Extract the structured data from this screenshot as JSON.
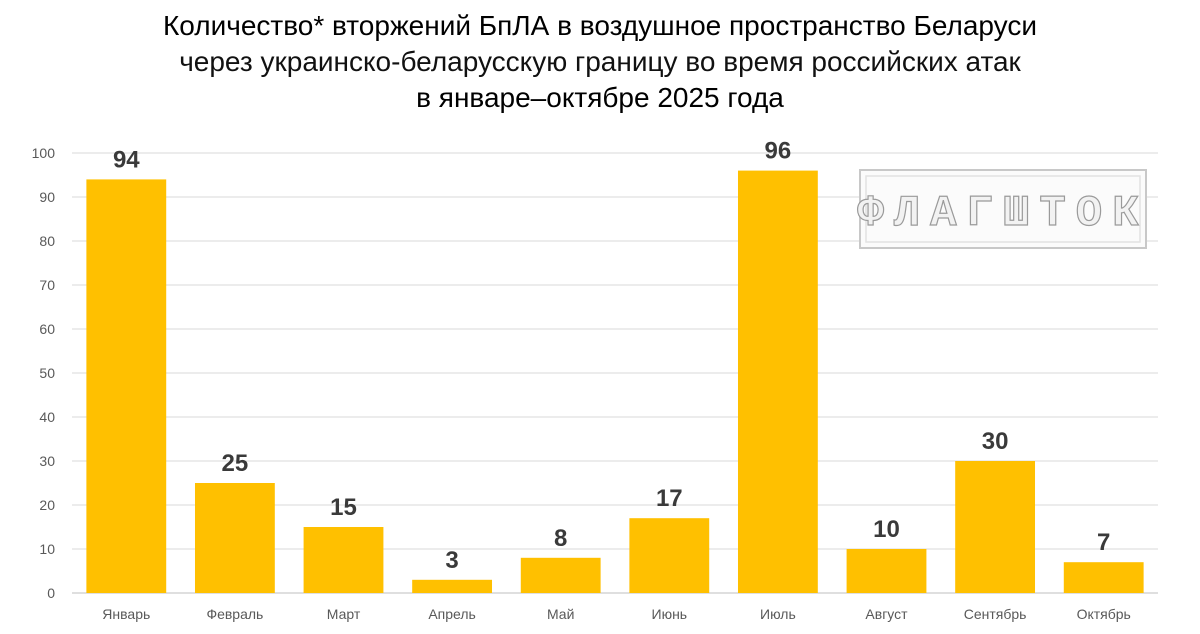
{
  "chart_data": {
    "type": "bar",
    "title": "Количество* вторжений БпЛА в воздушное пространство Беларуси",
    "subtitle": "через украинско-беларусскую границу во время российских атак",
    "period": "в январе–октябре 2025 года",
    "xlabel": "",
    "ylabel": "",
    "categories": [
      "Январь",
      "Февраль",
      "Март",
      "Апрель",
      "Май",
      "Июнь",
      "Июль",
      "Август",
      "Сентябрь",
      "Октябрь"
    ],
    "values": [
      94,
      25,
      15,
      3,
      8,
      17,
      96,
      10,
      30,
      7
    ],
    "ylim": [
      0,
      100
    ],
    "yticks": [
      0,
      10,
      20,
      30,
      40,
      50,
      60,
      70,
      80,
      90,
      100
    ],
    "grid": true,
    "data_labels": true,
    "legend": "none",
    "colors": {
      "bar": "#FFC000",
      "grid": "#d9d9d9",
      "axis_text": "#595959",
      "data_label": "#3a3a3a"
    }
  },
  "watermark": {
    "text": "ФЛАГШТОК",
    "kind": "logo"
  }
}
